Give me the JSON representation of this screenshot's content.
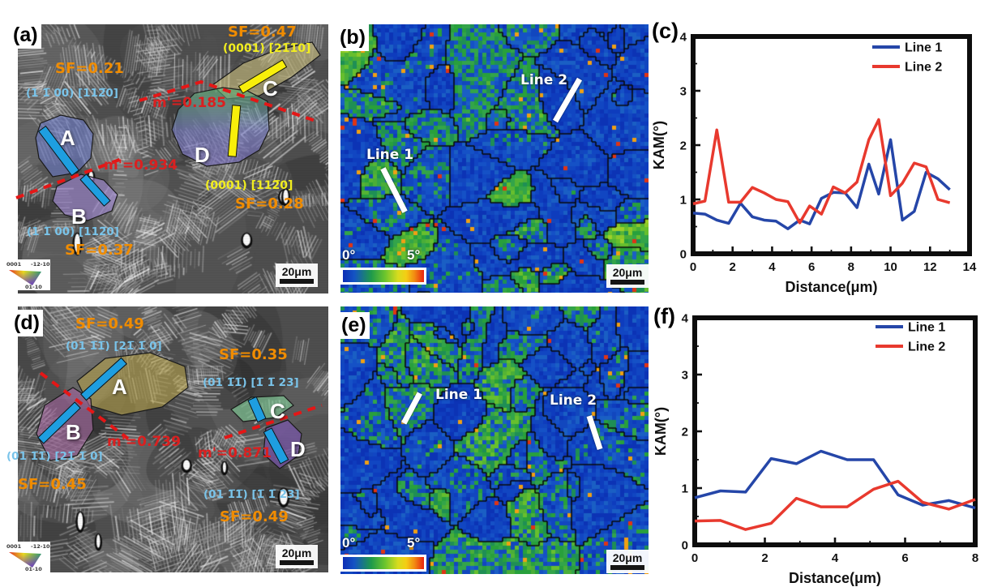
{
  "panels": {
    "a": {
      "label": "(a)",
      "sf_top_left": "SF=0.21",
      "slip_top_left": "(1 1̅ 00) [112̅0]",
      "sf_top_right": "SF=0.47",
      "slip_top_right": "(0001) [21̅1̅0]",
      "m_prime_cd": "m'=0.185",
      "m_prime_ab": "m'=0.934",
      "slip_grain_d": "(0001) [112̅0]",
      "sf_grain_d": "SF=0.28",
      "slip_bottom_left": "(1 1̅ 00) [112̅0]",
      "sf_bottom_left": "SF=0.37",
      "grains": {
        "a": "A",
        "b": "B",
        "c": "C",
        "d": "D"
      },
      "scale_bar": "20μm",
      "ipf_legend": {
        "corner_top_left": "0001",
        "corner_top_right": "-12-10",
        "corner_bottom": "01-10"
      }
    },
    "b": {
      "label": "(b)",
      "line_1": "Line 1",
      "line_2": "Line 2",
      "colorbar_min": "0°",
      "colorbar_max": "5°",
      "scale_bar": "20μm"
    },
    "c": {
      "label": "(c)"
    },
    "d": {
      "label": "(d)",
      "sf_grain_a": "SF=0.49",
      "slip_grain_a": "(01 1̅1̅) [21̅ 1̅ 0]",
      "sf_grain_c": "SF=0.35",
      "slip_grain_c": "(01 1̅1̅) [1̅ 1̅ 23]",
      "m_prime_ab": "m'=0.739",
      "m_prime_cd": "m'=0.871",
      "slip_grain_b": "(01 1̅1̅) [21̅ 1̅ 0]",
      "sf_grain_b": "SF=0.45",
      "slip_grain_d": "(01 1̅1̅) [1̅ 1̅ 23]",
      "sf_grain_d": "SF=0.49",
      "grains": {
        "a": "A",
        "b": "B",
        "c": "C",
        "d": "D"
      },
      "scale_bar": "20μm",
      "ipf_legend": {
        "corner_top_left": "0001",
        "corner_top_right": "-12-10",
        "corner_bottom": "01-10"
      }
    },
    "e": {
      "label": "(e)",
      "line_1": "Line 1",
      "line_2": "Line 2",
      "colorbar_min": "0°",
      "colorbar_max": "5°",
      "scale_bar": "20μm"
    },
    "f": {
      "label": "(f)"
    }
  },
  "colors": {
    "sf_orange": "#f08c00",
    "slip_cyan": "#7ac4ea",
    "slip_yellow": "#f2ee1f",
    "m_prime_red": "#da2020",
    "slip_trace_blue": "#1e9ee0",
    "slip_trace_yellow": "#f8ef0a",
    "dashed_line_red": "#e51616",
    "line1_blue": "#2546a8",
    "line2_red": "#e8392e"
  },
  "chart_data": [
    {
      "type": "line",
      "panel": "c",
      "title": "",
      "xlabel": "Distance(μm)",
      "ylabel": "KAM(°)",
      "xlim": [
        0,
        14
      ],
      "ylim": [
        0,
        4
      ],
      "xticks": [
        0,
        2,
        4,
        6,
        8,
        10,
        12,
        14
      ],
      "yticks": [
        0,
        1,
        2,
        3,
        4
      ],
      "x_minor_step": 1,
      "y_minor_step": 0.5,
      "grid": false,
      "legend_position": "top-right",
      "x": [
        0,
        0.6,
        1.2,
        1.8,
        2.4,
        3,
        3.6,
        4.2,
        4.8,
        5.4,
        5.9,
        6.5,
        7.1,
        7.7,
        8.3,
        8.9,
        9.4,
        10,
        10.6,
        11.2,
        11.8,
        12.4,
        13
      ],
      "series": [
        {
          "name": "Line 1",
          "color": "#2546a8",
          "values": [
            0.75,
            0.73,
            0.62,
            0.56,
            0.93,
            0.68,
            0.62,
            0.6,
            0.46,
            0.62,
            0.55,
            1.02,
            1.13,
            1.12,
            0.85,
            1.65,
            1.1,
            2.1,
            0.62,
            0.78,
            1.5,
            1.38,
            1.18
          ]
        },
        {
          "name": "Line 2",
          "color": "#e8392e",
          "values": [
            0.92,
            0.97,
            2.28,
            0.95,
            0.95,
            1.22,
            1.12,
            1,
            0.96,
            0.57,
            0.88,
            0.73,
            1.23,
            1.12,
            1.32,
            2.1,
            2.47,
            1.07,
            1.3,
            1.67,
            1.6,
            1,
            0.94
          ]
        }
      ]
    },
    {
      "type": "line",
      "panel": "f",
      "title": "",
      "xlabel": "Distance(μm)",
      "ylabel": "KAM(°)",
      "xlim": [
        0,
        8
      ],
      "ylim": [
        0,
        4
      ],
      "xticks": [
        0,
        2,
        4,
        6,
        8
      ],
      "yticks": [
        0,
        1,
        2,
        3,
        4
      ],
      "x_minor_step": 1,
      "y_minor_step": 0.5,
      "grid": false,
      "legend_position": "top-right",
      "x": [
        0,
        0.73,
        1.45,
        2.18,
        2.9,
        3.6,
        4.35,
        5.1,
        5.8,
        6.5,
        7.25,
        8
      ],
      "series": [
        {
          "name": "Line 1",
          "color": "#2546a8",
          "values": [
            0.83,
            0.95,
            0.93,
            1.52,
            1.43,
            1.65,
            1.5,
            1.5,
            0.88,
            0.7,
            0.78,
            0.65
          ]
        },
        {
          "name": "Line 2",
          "color": "#e8392e",
          "values": [
            0.42,
            0.43,
            0.27,
            0.38,
            0.82,
            0.67,
            0.67,
            0.98,
            1.12,
            0.75,
            0.63,
            0.8
          ]
        }
      ]
    }
  ]
}
